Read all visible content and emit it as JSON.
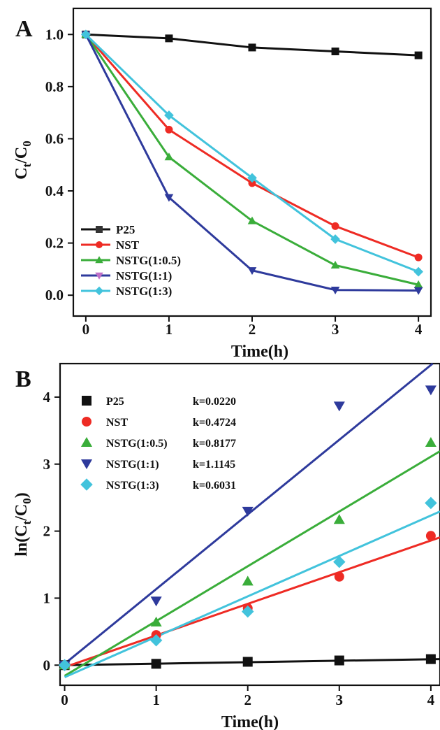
{
  "chart_data": [
    {
      "panel": "A",
      "type": "line",
      "xlabel": "Time(h)",
      "ylabel": "Ct/C0",
      "ylabel_main": "C",
      "ylabel_sub1": "t",
      "ylabel_sep": "/C",
      "ylabel_sub2": "0",
      "xlim": [
        -0.15,
        4.15
      ],
      "ylim": [
        -0.08,
        1.1
      ],
      "xticks": [
        0,
        1,
        2,
        3,
        4
      ],
      "yticks": [
        0.0,
        0.2,
        0.4,
        0.6,
        0.8,
        1.0
      ],
      "ytick_labels": [
        "0.0",
        "0.2",
        "0.4",
        "0.6",
        "0.8",
        "1.0"
      ],
      "legend_position": "bottom-left",
      "x": [
        0,
        1,
        2,
        3,
        4
      ],
      "series": [
        {
          "name": "P25",
          "color": "#111111",
          "marker": "square",
          "values": [
            1.0,
            0.985,
            0.95,
            0.935,
            0.92
          ]
        },
        {
          "name": "NST",
          "color": "#ee2b24",
          "marker": "circle",
          "values": [
            1.0,
            0.635,
            0.43,
            0.265,
            0.145
          ]
        },
        {
          "name": "NSTG(1:0.5)",
          "color": "#3aad3a",
          "marker": "triangle-up",
          "values": [
            1.0,
            0.53,
            0.285,
            0.115,
            0.04
          ]
        },
        {
          "name": "NSTG(1:1)",
          "color": "#2e3a9c",
          "marker": "triangle-down",
          "values": [
            1.0,
            0.375,
            0.095,
            0.02,
            0.018
          ]
        },
        {
          "name": "NSTG(1:3)",
          "color": "#42c3dc",
          "marker": "diamond",
          "values": [
            1.0,
            0.69,
            0.45,
            0.215,
            0.09
          ]
        }
      ],
      "legend_marker_colors": {
        "P25": "#333333",
        "NSTG(1:1)": "#c070c8"
      }
    },
    {
      "panel": "B",
      "type": "scatter",
      "xlabel": "Time(h)",
      "ylabel": "ln(Ct/C0)",
      "ylabel_pre": "ln(C",
      "ylabel_sub1": "t",
      "ylabel_sep": "/C",
      "ylabel_sub2": "0",
      "ylabel_post": ")",
      "xlim": [
        -0.05,
        4.1
      ],
      "ylim": [
        -0.3,
        4.5
      ],
      "xticks": [
        0,
        1,
        2,
        3,
        4
      ],
      "yticks": [
        0,
        1,
        2,
        3,
        4
      ],
      "legend_position": "top-left",
      "x": [
        0,
        1,
        2,
        3,
        4
      ],
      "series": [
        {
          "name": "P25",
          "k_label": "k=0.0220",
          "color": "#111111",
          "marker": "square",
          "values": [
            0,
            0.02,
            0.05,
            0.07,
            0.09
          ],
          "fit": [
            0,
            0.022
          ]
        },
        {
          "name": "NST",
          "k_label": "k=0.4724",
          "color": "#ee2b24",
          "marker": "circle",
          "values": [
            0,
            0.45,
            0.85,
            1.32,
            1.93
          ],
          "fit": [
            -0.03,
            0.4724
          ]
        },
        {
          "name": "NSTG(1:0.5)",
          "k_label": "k=0.8177",
          "color": "#3aad3a",
          "marker": "triangle-up",
          "values": [
            0,
            0.64,
            1.25,
            2.17,
            3.32
          ],
          "fit": [
            -0.16,
            0.8177
          ]
        },
        {
          "name": "NSTG(1:1)",
          "k_label": "k=1.1145",
          "color": "#2e3a9c",
          "marker": "triangle-down",
          "values": [
            0,
            0.96,
            2.3,
            3.87,
            4.11
          ],
          "fit": [
            0.02,
            1.1145
          ]
        },
        {
          "name": "NSTG(1:3)",
          "k_label": "k=0.6031",
          "color": "#42c3dc",
          "marker": "diamond",
          "values": [
            0,
            0.37,
            0.8,
            1.54,
            2.42
          ],
          "fit": [
            -0.18,
            0.6031
          ]
        }
      ]
    }
  ]
}
